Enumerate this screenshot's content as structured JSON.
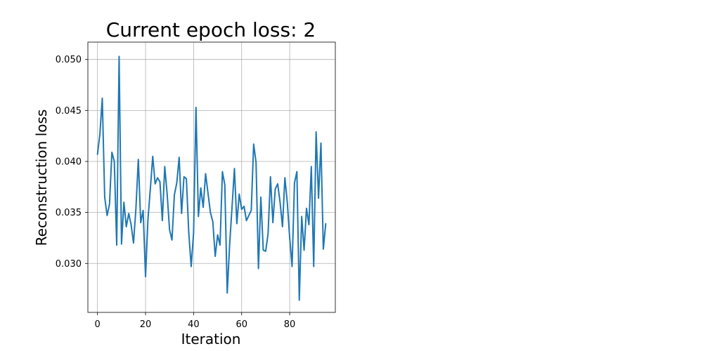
{
  "chart_data": {
    "type": "line",
    "title": "Current epoch loss: 2",
    "xlabel": "Iteration",
    "ylabel": "Reconstruction loss",
    "xlim": [
      -4,
      99
    ],
    "ylim": [
      0.0252,
      0.0517
    ],
    "xticks": [
      0,
      20,
      40,
      60,
      80
    ],
    "yticks": [
      0.03,
      0.035,
      0.04,
      0.045,
      0.05
    ],
    "ytick_labels": [
      "0.030",
      "0.035",
      "0.040",
      "0.045",
      "0.050"
    ],
    "grid": true,
    "series": [
      {
        "color": "#1f77b4",
        "x": [
          0,
          1,
          2,
          3,
          4,
          5,
          6,
          7,
          8,
          9,
          10,
          11,
          12,
          13,
          14,
          15,
          16,
          17,
          18,
          19,
          20,
          21,
          22,
          23,
          24,
          25,
          26,
          27,
          28,
          29,
          30,
          31,
          32,
          33,
          34,
          35,
          36,
          37,
          38,
          39,
          40,
          41,
          42,
          43,
          44,
          45,
          46,
          47,
          48,
          49,
          50,
          51,
          52,
          53,
          54,
          55,
          56,
          57,
          58,
          59,
          60,
          61,
          62,
          63,
          64,
          65,
          66,
          67,
          68,
          69,
          70,
          71,
          72,
          73,
          74,
          75,
          76,
          77,
          78,
          79,
          80,
          81,
          82,
          83,
          84,
          85,
          86,
          87,
          88,
          89,
          90,
          91,
          92,
          93,
          94,
          95
        ],
        "y": [
          0.0407,
          0.0427,
          0.0462,
          0.0365,
          0.0347,
          0.0358,
          0.0409,
          0.04,
          0.0318,
          0.0503,
          0.0319,
          0.036,
          0.0336,
          0.0349,
          0.0338,
          0.032,
          0.0354,
          0.0402,
          0.034,
          0.0352,
          0.0287,
          0.0343,
          0.0373,
          0.0405,
          0.0378,
          0.0384,
          0.038,
          0.0342,
          0.0395,
          0.0368,
          0.0333,
          0.0323,
          0.0367,
          0.0379,
          0.0404,
          0.0349,
          0.0385,
          0.0383,
          0.033,
          0.0297,
          0.033,
          0.0453,
          0.0346,
          0.0374,
          0.0355,
          0.0388,
          0.0369,
          0.035,
          0.0341,
          0.0307,
          0.0328,
          0.0318,
          0.039,
          0.0377,
          0.0271,
          0.0318,
          0.0355,
          0.0393,
          0.0339,
          0.0368,
          0.0353,
          0.0356,
          0.0342,
          0.0347,
          0.0352,
          0.0417,
          0.0399,
          0.0295,
          0.0365,
          0.0313,
          0.0312,
          0.0329,
          0.0385,
          0.034,
          0.0373,
          0.0378,
          0.036,
          0.0336,
          0.0384,
          0.036,
          0.0325,
          0.0297,
          0.0379,
          0.039,
          0.0264,
          0.0346,
          0.0313,
          0.0354,
          0.0338,
          0.0395,
          0.0297,
          0.0429,
          0.0364,
          0.0418,
          0.0314,
          0.0339
        ]
      }
    ]
  }
}
